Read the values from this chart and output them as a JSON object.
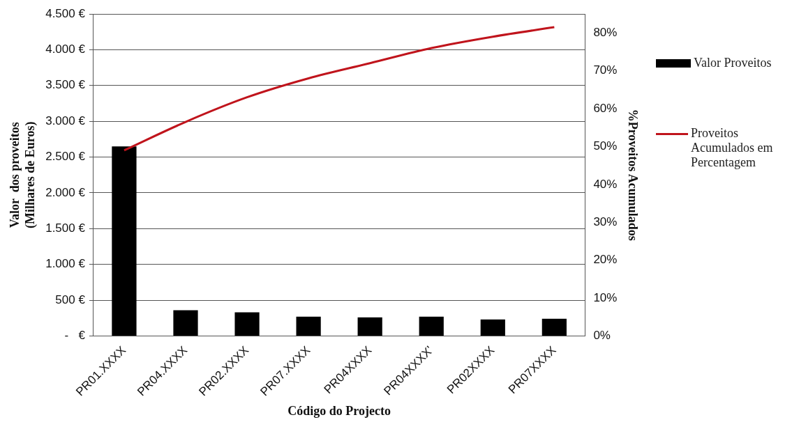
{
  "chart_data": {
    "type": "bar",
    "xlabel": "Código do Projecto",
    "ylabel": "Valor  dos proveitos\n(Milhares de Euros)",
    "y2label": "%Proveitos Acumulados",
    "categories": [
      "PR01.XXXX",
      "PR04.XXXX",
      "PR02.XXXX",
      "PR07.XXXX",
      "PR04XXXX",
      "PR04XXXX'",
      "PR02XXXX",
      "PR07XXXX"
    ],
    "series": [
      {
        "name": "Valor Proveitos",
        "color": "#000000",
        "values": [
          2650,
          360,
          330,
          270,
          260,
          270,
          230,
          240
        ]
      },
      {
        "name": "Proveitos Acumulados em Percentagem",
        "type": "line",
        "axis": "y2",
        "color": "#c0141c",
        "values": [
          49,
          56.5,
          63,
          68,
          72,
          76,
          79,
          81.5
        ]
      }
    ],
    "ylim": [
      0,
      4500
    ],
    "yticks": [
      {
        "value": 0,
        "label": "-   €"
      },
      {
        "value": 500,
        "label": "500 €"
      },
      {
        "value": 1000,
        "label": "1.000 €"
      },
      {
        "value": 1500,
        "label": "1.500 €"
      },
      {
        "value": 2000,
        "label": "2.000 €"
      },
      {
        "value": 2500,
        "label": "2.500 €"
      },
      {
        "value": 3000,
        "label": "3.000 €"
      },
      {
        "value": 3500,
        "label": "3.500 €"
      },
      {
        "value": 4000,
        "label": "4.000 €"
      },
      {
        "value": 4500,
        "label": "4.500 €"
      }
    ],
    "y2lim": [
      0,
      85
    ],
    "y2ticks": [
      {
        "value": 0,
        "label": "0%"
      },
      {
        "value": 10,
        "label": "10%"
      },
      {
        "value": 20,
        "label": "20%"
      },
      {
        "value": 30,
        "label": "30%"
      },
      {
        "value": 40,
        "label": "40%"
      },
      {
        "value": 50,
        "label": "50%"
      },
      {
        "value": 60,
        "label": "60%"
      },
      {
        "value": 70,
        "label": "70%"
      },
      {
        "value": 80,
        "label": "80%"
      }
    ],
    "grid": "y",
    "legend": "right",
    "marker": "none"
  }
}
